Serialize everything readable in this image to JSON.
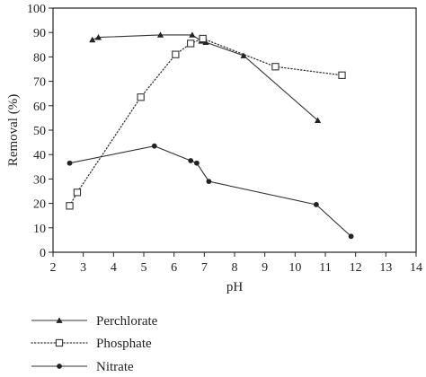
{
  "chart_data": {
    "type": "line",
    "xlabel": "pH",
    "ylabel": "Removal (%)",
    "xlim": [
      2,
      14
    ],
    "ylim": [
      0,
      100
    ],
    "xticks": [
      2,
      3,
      4,
      5,
      6,
      7,
      8,
      9,
      10,
      11,
      12,
      13,
      14
    ],
    "yticks": [
      0,
      10,
      20,
      30,
      40,
      50,
      60,
      70,
      80,
      90,
      100
    ],
    "grid": false,
    "legend_position": "bottom-left",
    "series": [
      {
        "name": "Perchlorate",
        "marker": "triangle",
        "line_style": "solid",
        "points": [
          [
            3.3,
            87.0
          ],
          [
            3.5,
            88.0
          ],
          [
            5.55,
            89.0
          ],
          [
            6.6,
            89.0
          ],
          [
            6.9,
            86.5
          ],
          [
            7.05,
            86.0
          ],
          [
            8.3,
            80.5
          ],
          [
            10.75,
            54.0
          ]
        ]
      },
      {
        "name": "Phosphate",
        "marker": "square-open",
        "line_style": "dotted",
        "points": [
          [
            2.55,
            19.0
          ],
          [
            2.8,
            24.5
          ],
          [
            4.9,
            63.5
          ],
          [
            6.05,
            81.0
          ],
          [
            6.55,
            85.5
          ],
          [
            6.95,
            87.5
          ],
          [
            9.35,
            76.0
          ],
          [
            11.55,
            72.5
          ]
        ]
      },
      {
        "name": "Nitrate",
        "marker": "circle",
        "line_style": "solid",
        "points": [
          [
            2.55,
            36.5
          ],
          [
            5.35,
            43.5
          ],
          [
            6.55,
            37.5
          ],
          [
            6.75,
            36.5
          ],
          [
            7.15,
            29.0
          ],
          [
            10.7,
            19.5
          ],
          [
            11.85,
            6.5
          ]
        ]
      }
    ]
  }
}
